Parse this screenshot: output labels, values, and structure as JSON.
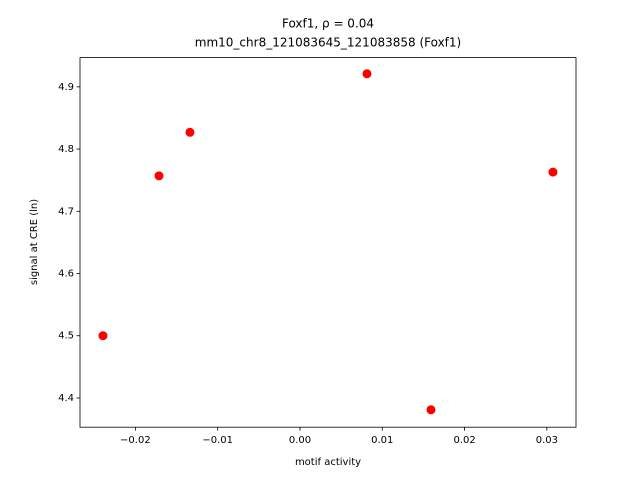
{
  "chart_data": {
    "type": "scatter",
    "title": "Foxf1, ρ = 0.04",
    "subtitle": "mm10_chr8_121083645_121083858 (Foxf1)",
    "x_label": "motif activity",
    "y_label": "signal at CRE (ln)",
    "color": "#ff0000",
    "x": [
      -0.02394,
      -0.01713,
      -0.01337,
      0.00814,
      0.01592,
      0.03074
    ],
    "values": [
      4.5,
      4.757,
      4.827,
      4.921,
      4.381,
      4.763
    ],
    "xlim": [
      -0.02673,
      0.03354
    ],
    "ylim": [
      4.353,
      4.947
    ],
    "xticks": [
      {
        "value": -0.02,
        "label": "−0.02"
      },
      {
        "value": -0.01,
        "label": "−0.01"
      },
      {
        "value": 0,
        "label": "0.00"
      },
      {
        "value": 0.01,
        "label": "0.01"
      },
      {
        "value": 0.02,
        "label": "0.02"
      },
      {
        "value": 0.03,
        "label": "0.03"
      }
    ],
    "yticks": [
      4.4,
      4.5,
      4.6,
      4.7,
      4.8,
      4.9
    ],
    "grid": false
  }
}
